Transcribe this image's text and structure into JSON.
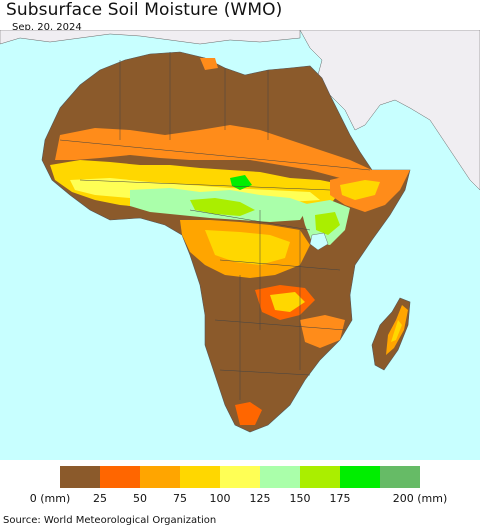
{
  "header": {
    "title": "Subsurface Soil Moisture (WMO)",
    "date": "Sep. 20, 2024"
  },
  "legend": {
    "colors": [
      "#8B5A2B",
      "#FF6600",
      "#FFA500",
      "#FFD700",
      "#FFFF55",
      "#AAFFAA",
      "#AAEE00",
      "#00EE00",
      "#66BB66"
    ],
    "labels": [
      "0 (mm)",
      "25",
      "50",
      "75",
      "100",
      "125",
      "150",
      "175",
      "200 (mm)"
    ]
  },
  "map": {
    "ocean_color": "#C8FFFF",
    "land_color": "#8B5A2B",
    "non_data_land_color": "#F0EEF2",
    "border_color": "#444444"
  },
  "footer": {
    "source": "Source: World Meteorological Organization"
  }
}
